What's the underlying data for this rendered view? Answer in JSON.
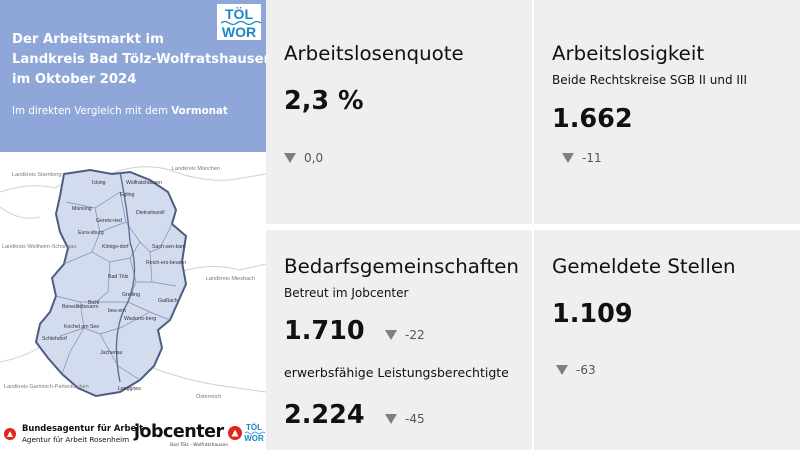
{
  "header": {
    "title_lines": [
      "Der Arbeitsmarkt im",
      "Landkreis Bad Tölz-Wolfratshausen",
      "im Oktober 2024"
    ],
    "subtitle_prefix": "Im direkten Vergleich mit dem ",
    "subtitle_emphasis": "Vormonat",
    "logo_text_top": "TÖL",
    "logo_text_bottom": "WOR"
  },
  "map": {
    "outside_labels": [
      "Landkreis Starnberg",
      "Landkreis München",
      "Landkreis Weilheim-Schongau",
      "Landkreis Miesbach",
      "Landkreis Garmisch-Partenkirchen",
      "Österreich"
    ],
    "municipalities": [
      "Icking",
      "Egling",
      "Münsing",
      "Gerets-ried",
      "Dietramszell",
      "Eura-sburg",
      "Königs-dorf",
      "Sach-sen-kam",
      "Reich-ers-beuern",
      "Bad Tölz",
      "Greiling",
      "Bichl",
      "Wackers-berg",
      "Gaißach",
      "Benediktbeuern",
      "beu-ern",
      "Kochel am See",
      "Schlehdorf",
      "Jachenau",
      "Lenggries",
      "Wolfratshausen"
    ]
  },
  "logos": {
    "ba_name": "Bundesagentur für Arbeit",
    "ba_sub": "Agentur für Arbeit Rosenheim",
    "jobcenter_name": "jobcenter",
    "jobcenter_sub": "Bad Tölz - Wolfratshausen"
  },
  "tiles": {
    "quote": {
      "title": "Arbeitslosenquote",
      "value": "2,3 %",
      "change": "0,0"
    },
    "arbeitslosigkeit": {
      "title": "Arbeitslosigkeit",
      "subtitle": "Beide Rechtskreise SGB II und III",
      "value": "1.662",
      "change": "-11"
    },
    "bedarf": {
      "title": "Bedarfsgemeinschaften",
      "subtitle": "Betreut im Jobcenter",
      "value": "1.710",
      "change": "-22",
      "subtitle2": "erwerbsfähige Leistungsberechtigte",
      "value2": "2.224",
      "change2": "-45"
    },
    "stellen": {
      "title": "Gemeldete Stellen",
      "value": "1.109",
      "change": "-63"
    }
  },
  "colors": {
    "header_bg": "#8fa6d8",
    "tile_bg": "#efefef",
    "map_fill": "#d3dbee",
    "map_border": "#4d5d80",
    "trend_icon": "#7f7f7f",
    "logo_blue": "#1a86c7",
    "ba_red": "#e2231a"
  },
  "icons": {
    "trend": "triangle-down-icon"
  }
}
